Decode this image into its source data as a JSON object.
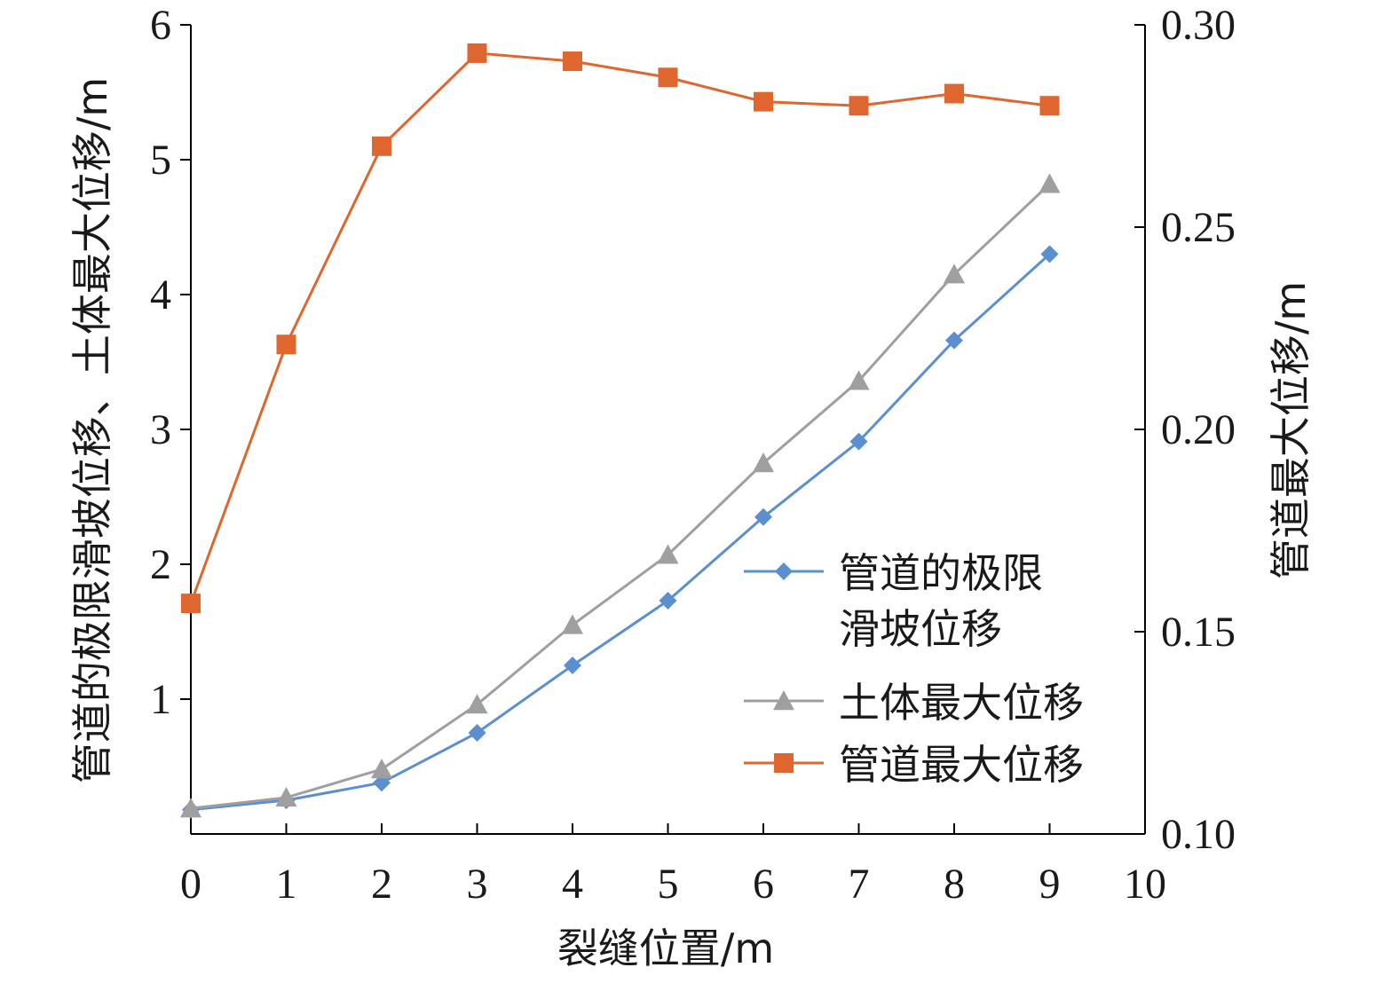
{
  "chart_data": {
    "type": "line",
    "xlabel": "裂缝位置/m",
    "ylabel_left": "管道的极限滑坡位移、土体最大位移/m",
    "ylabel_right": "管道最大位移/m",
    "x_ticks": [
      "0",
      "1",
      "2",
      "3",
      "4",
      "5",
      "6",
      "7",
      "8",
      "9",
      "10"
    ],
    "y_left_ticks": [
      "1",
      "2",
      "3",
      "4",
      "5",
      "6"
    ],
    "y_right_ticks": [
      "0.10",
      "0.15",
      "0.20",
      "0.25",
      "0.30"
    ],
    "xlim": [
      0,
      10
    ],
    "ylim_left": [
      0,
      6
    ],
    "ylim_right": [
      0.1,
      0.3
    ],
    "grid": false,
    "legend_position": "center-right",
    "x": [
      0,
      1,
      2,
      3,
      4,
      5,
      6,
      7,
      8,
      9
    ],
    "series": [
      {
        "name": "管道的极限滑坡位移",
        "legend_lines": [
          "管道的极限",
          "滑坡位移"
        ],
        "axis": "left",
        "marker": "diamond",
        "color": "#5b8fcf",
        "values": [
          0.18,
          0.25,
          0.38,
          0.75,
          1.25,
          1.73,
          2.35,
          2.91,
          3.66,
          4.3
        ]
      },
      {
        "name": "土体最大位移",
        "legend_lines": [
          "土体最大位移"
        ],
        "axis": "left",
        "marker": "triangle",
        "color": "#9f9f9f",
        "values": [
          0.19,
          0.27,
          0.48,
          0.96,
          1.55,
          2.07,
          2.75,
          3.36,
          4.15,
          4.82
        ]
      },
      {
        "name": "管道最大位移",
        "legend_lines": [
          "管道最大位移"
        ],
        "axis": "right",
        "marker": "square",
        "color": "#e0662f",
        "values": [
          0.157,
          0.221,
          0.27,
          0.293,
          0.291,
          0.287,
          0.281,
          0.28,
          0.283,
          0.28
        ]
      }
    ]
  }
}
